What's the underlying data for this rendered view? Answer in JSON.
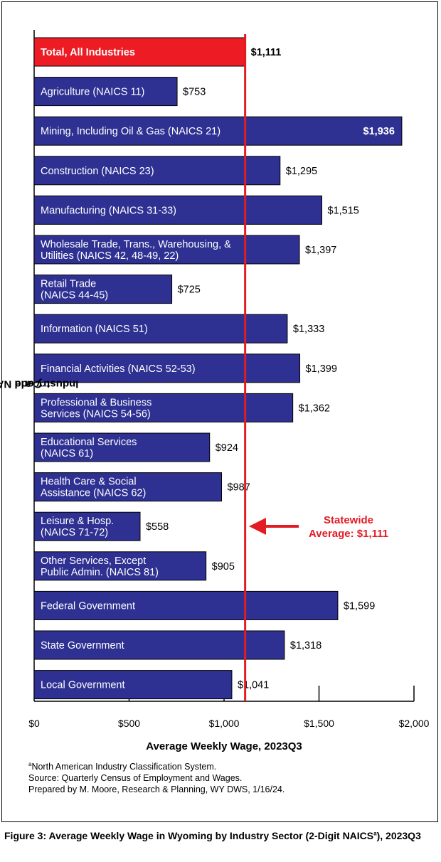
{
  "chart_data": {
    "type": "bar",
    "orientation": "horizontal",
    "categories": [
      [
        "Total, All Industries"
      ],
      [
        "Agriculture (NAICS 11)"
      ],
      [
        "Mining, Including Oil & Gas (NAICS 21)"
      ],
      [
        "Construction (NAICS 23)"
      ],
      [
        "Manufacturing (NAICS 31-33)"
      ],
      [
        "Wholesale Trade, Trans., Warehousing, &",
        "Utilities (NAICS 42, 48-49, 22)"
      ],
      [
        "Retail Trade",
        "(NAICS 44-45)"
      ],
      [
        "Information (NAICS 51)"
      ],
      [
        "Financial Activities (NAICS 52-53)"
      ],
      [
        "Professional & Business",
        "Services (NAICS 54-56)"
      ],
      [
        "Educational Services",
        "(NAICS 61)"
      ],
      [
        "Health Care & Social",
        "Assistance (NAICS 62)"
      ],
      [
        "Leisure & Hosp.",
        "(NAICS 71-72)"
      ],
      [
        "Other Services, Except",
        "Public Admin. (NAICS 81)"
      ],
      [
        "Federal Government"
      ],
      [
        "State Government"
      ],
      [
        "Local Government"
      ]
    ],
    "values": [
      1111,
      753,
      1936,
      1295,
      1515,
      1397,
      725,
      1333,
      1399,
      1362,
      924,
      987,
      558,
      905,
      1599,
      1318,
      1041
    ],
    "value_labels": [
      "$1,111",
      "$753",
      "$1,936",
      "$1,295",
      "$1,515",
      "$1,397",
      "$725",
      "$1,333",
      "$1,399",
      "$1,362",
      "$924",
      "$987",
      "$558",
      "$905",
      "$1,599",
      "$1,318",
      "$1,041"
    ],
    "highlight_index": 0,
    "inside_label_index": 2,
    "xlim": [
      0,
      2000
    ],
    "xticks": [
      0,
      500,
      1000,
      1500,
      2000
    ],
    "xtick_labels": [
      "$0",
      "$500",
      "$1,000",
      "$1,500",
      "$2,000"
    ],
    "xlabel": "Average Weekly Wage, 2023Q3",
    "ylabel_main": "Industry and NAICS",
    "ylabel_sup": "a",
    "ylabel_tail": " Code",
    "reference_line": {
      "value": 1111,
      "label_lines": [
        "Statewide",
        "Average: $1,111"
      ]
    },
    "colors": {
      "bar": "#2e3192",
      "highlight": "#ed1c24",
      "reference": "#e31b23",
      "bar_text": "#ffffff",
      "axis": "#000000"
    }
  },
  "notes": {
    "sup": "a",
    "line1": "North American Industry Classification System.",
    "line2": "Source: Quarterly Census of Employment and Wages.",
    "line3": "Prepared by M. Moore, Research & Planning, WY DWS, 1/16/24."
  },
  "caption": {
    "prefix": "Figure 3: Average Weekly Wage in Wyoming by Industry Sector (2-Digit NAICS",
    "sup": "a",
    "suffix": "), 2023Q3"
  }
}
